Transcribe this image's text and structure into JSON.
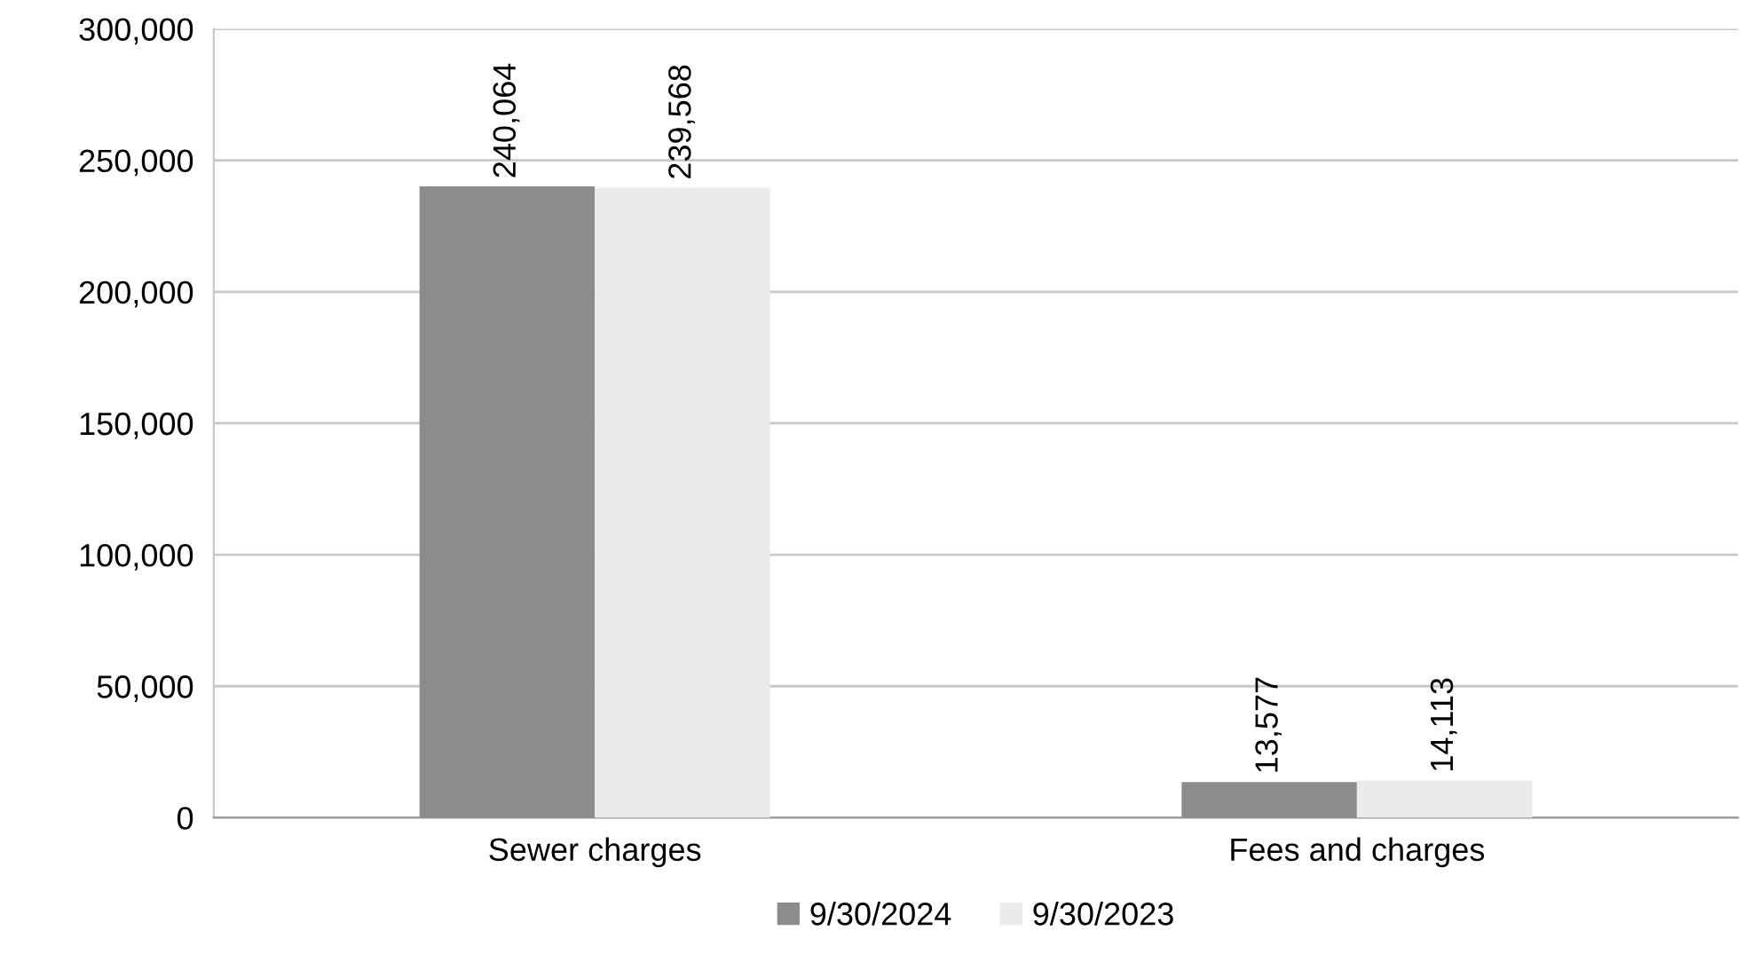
{
  "chart_data": {
    "type": "bar",
    "categories": [
      "Sewer charges",
      "Fees and charges"
    ],
    "series": [
      {
        "name": "9/30/2024",
        "color": "#8c8c8c",
        "values": [
          240064,
          13577
        ],
        "value_labels": [
          "240,064",
          "13,577"
        ]
      },
      {
        "name": "9/30/2023",
        "color": "#ebebeb",
        "values": [
          239568,
          14113
        ],
        "value_labels": [
          "239,568",
          "14,113"
        ]
      }
    ],
    "ylim": [
      0,
      300000
    ],
    "yticks": [
      {
        "value": 0,
        "label": "0"
      },
      {
        "value": 50000,
        "label": "50,000"
      },
      {
        "value": 100000,
        "label": "100,000"
      },
      {
        "value": 150000,
        "label": "150,000"
      },
      {
        "value": 200000,
        "label": "200,000"
      },
      {
        "value": 250000,
        "label": "250,000"
      },
      {
        "value": 300000,
        "label": "300,000"
      }
    ],
    "grid": "y",
    "legend": "bottom"
  }
}
